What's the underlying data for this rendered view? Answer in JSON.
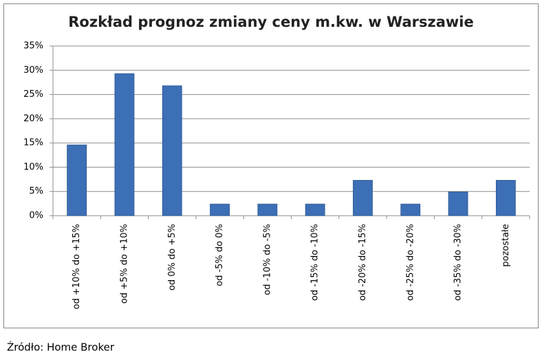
{
  "chart_data": {
    "type": "bar",
    "title": "Rozkład prognoz zmiany ceny m.kw. w Warszawie",
    "categories": [
      "od +10% do +15%",
      "od +5% do +10%",
      "od 0% do +5%",
      "od -5% do 0%",
      "od -10% do -5%",
      "od -15% do -10%",
      "od -20% do -15%",
      "od -25% do -20%",
      "od -35% do -30%",
      "pozostałe"
    ],
    "values": [
      14.6,
      29.3,
      26.8,
      2.4,
      2.4,
      2.4,
      7.3,
      2.4,
      4.9,
      7.3
    ],
    "color": "#3c6fb5",
    "ylim": [
      0,
      35
    ],
    "yticks": [
      {
        "value": 0,
        "label": "0%"
      },
      {
        "value": 5,
        "label": "5%"
      },
      {
        "value": 10,
        "label": "10%"
      },
      {
        "value": 15,
        "label": "15%"
      },
      {
        "value": 20,
        "label": "20%"
      },
      {
        "value": 25,
        "label": "25%"
      },
      {
        "value": 30,
        "label": "30%"
      },
      {
        "value": 35,
        "label": "35%"
      }
    ],
    "grid": true,
    "source": "Źródło: Home Broker"
  }
}
